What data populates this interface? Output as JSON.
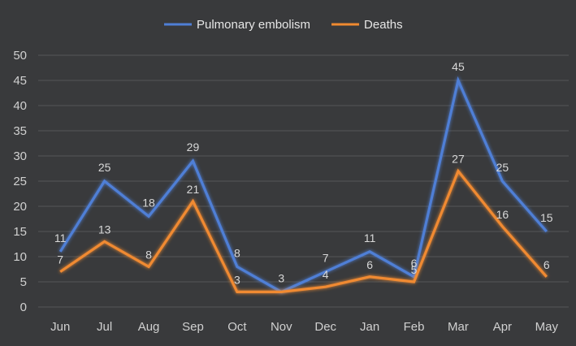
{
  "chart_data": {
    "type": "line",
    "categories": [
      "Jun",
      "Jul",
      "Aug",
      "Sep",
      "Oct",
      "Nov",
      "Dec",
      "Jan",
      "Feb",
      "Mar",
      "Apr",
      "May"
    ],
    "series": [
      {
        "name": "Pulmonary embolism",
        "color": "#4f7fd6",
        "values": [
          11,
          25,
          18,
          29,
          8,
          3,
          7,
          11,
          6,
          45,
          25,
          15
        ],
        "labels": [
          "11",
          "25",
          "18",
          "29",
          "8",
          "3",
          "7",
          "11",
          "6",
          "45",
          "25",
          "15"
        ]
      },
      {
        "name": "Deaths",
        "color": "#f08a30",
        "values": [
          7,
          13,
          8,
          21,
          3,
          3,
          4,
          6,
          5,
          27,
          16,
          6
        ],
        "labels": [
          "7",
          "13",
          "8",
          "21",
          "3",
          "",
          "4",
          "6",
          "5",
          "27",
          "16",
          "6"
        ]
      }
    ],
    "yticks": [
      "0",
      "5",
      "10",
      "15",
      "20",
      "25",
      "30",
      "35",
      "40",
      "45",
      "50"
    ],
    "ylim": [
      0,
      50
    ],
    "grid": true,
    "legend": "top-center"
  }
}
